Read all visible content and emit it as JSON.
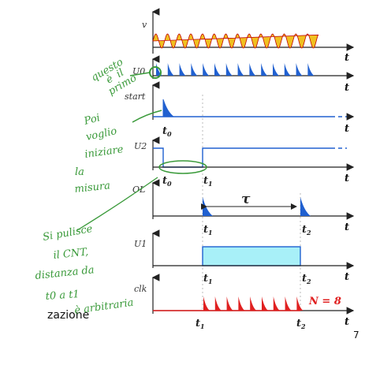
{
  "signals": {
    "v": "v",
    "u0": "U0",
    "start": "start",
    "u2": "U2",
    "ol": "OL",
    "u1": "U1",
    "clk": "clk"
  },
  "axis_label": "t",
  "time_markers": {
    "t0": "t",
    "t0_sub": "0",
    "t1": "t",
    "t1_sub": "1",
    "t2": "t",
    "t2_sub": "2"
  },
  "tau_label": "τ",
  "count_label": "N = 8",
  "caption_fragment": "zazione",
  "page_number": "7",
  "handwritten": {
    "note1": [
      "questo",
      "è",
      "il",
      "primo"
    ],
    "note2": [
      "Poi",
      "voglio",
      "iniziare",
      "la",
      "misura"
    ],
    "note3": [
      "Si pulisce",
      "il CNT,",
      "distanza da",
      "t0 a t1",
      "è arbitraria"
    ]
  },
  "colors": {
    "sine": "#f0c020",
    "sine_outline": "#c00000",
    "pulse": "#2060d0",
    "u1_fill": "#a8f0f8",
    "clk": "#e02020",
    "axis": "#222222",
    "handwriting": "#3a9a3a"
  }
}
